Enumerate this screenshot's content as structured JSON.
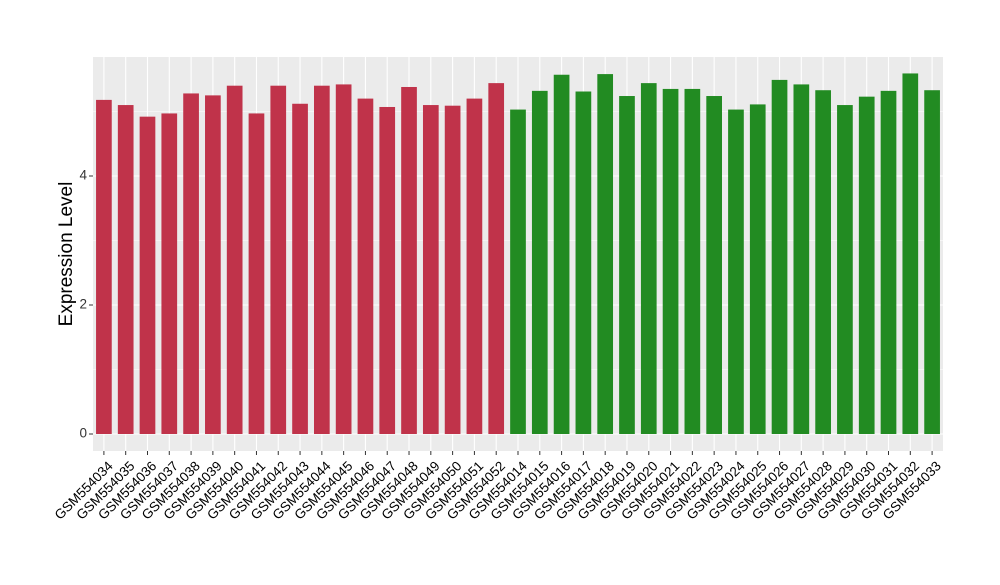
{
  "chart_data": {
    "type": "bar",
    "title": "",
    "xlabel": "",
    "ylabel": "Expression Level",
    "ylim": [
      0,
      5.85
    ],
    "yticks": [
      0,
      2,
      4
    ],
    "grid": true,
    "legend": "none",
    "categories": [
      "GSM554034",
      "GSM554035",
      "GSM554036",
      "GSM554037",
      "GSM554038",
      "GSM554039",
      "GSM554040",
      "GSM554041",
      "GSM554042",
      "GSM554043",
      "GSM554044",
      "GSM554045",
      "GSM554046",
      "GSM554047",
      "GSM554048",
      "GSM554049",
      "GSM554050",
      "GSM554051",
      "GSM554052",
      "GSM554014",
      "GSM554015",
      "GSM554016",
      "GSM554017",
      "GSM554018",
      "GSM554019",
      "GSM554020",
      "GSM554021",
      "GSM554022",
      "GSM554023",
      "GSM554024",
      "GSM554025",
      "GSM554026",
      "GSM554027",
      "GSM554028",
      "GSM554029",
      "GSM554030",
      "GSM554031",
      "GSM554032",
      "GSM554033"
    ],
    "values": [
      5.18,
      5.1,
      4.92,
      4.97,
      5.28,
      5.25,
      5.4,
      4.97,
      5.4,
      5.12,
      5.4,
      5.42,
      5.2,
      5.07,
      5.38,
      5.1,
      5.09,
      5.2,
      5.44,
      5.03,
      5.32,
      5.57,
      5.31,
      5.58,
      5.24,
      5.44,
      5.35,
      5.35,
      5.24,
      5.03,
      5.11,
      5.49,
      5.42,
      5.33,
      5.1,
      5.23,
      5.32,
      5.59,
      5.33
    ],
    "groups": [
      "a",
      "a",
      "a",
      "a",
      "a",
      "a",
      "a",
      "a",
      "a",
      "a",
      "a",
      "a",
      "a",
      "a",
      "a",
      "a",
      "a",
      "a",
      "a",
      "b",
      "b",
      "b",
      "b",
      "b",
      "b",
      "b",
      "b",
      "b",
      "b",
      "b",
      "b",
      "b",
      "b",
      "b",
      "b",
      "b",
      "b",
      "b",
      "b"
    ],
    "colors": {
      "a": "#C0334A",
      "b": "#228B22"
    },
    "panel_background": "#EBEBEB",
    "gridline_color": "#FFFFFF"
  }
}
